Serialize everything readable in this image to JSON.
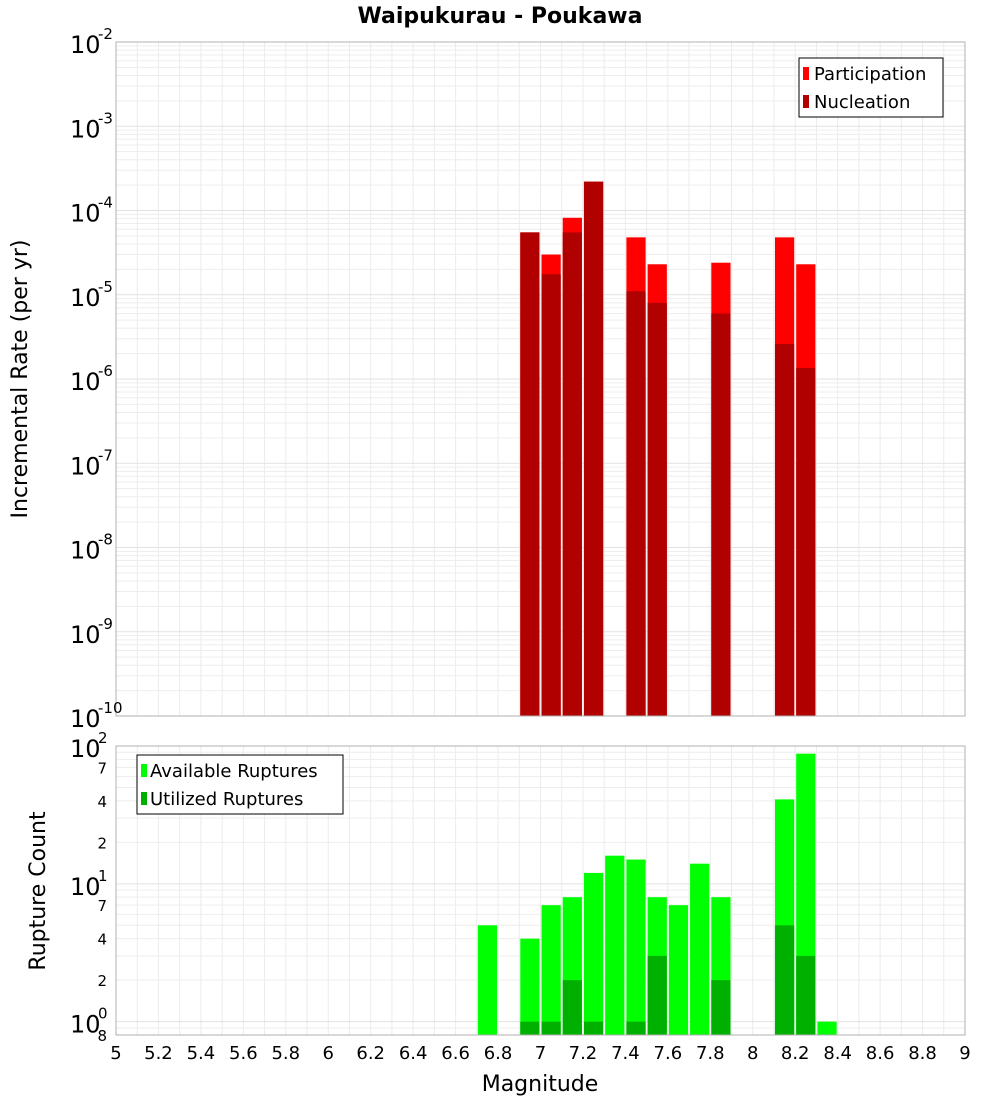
{
  "chart_data": [
    {
      "type": "bar",
      "title": "Waipukurau - Poukawa",
      "xlabel": "",
      "ylabel": "Incremental Rate (per yr)",
      "xlim": [
        5,
        9
      ],
      "ylim": [
        1e-10,
        0.01
      ],
      "yscale": "log",
      "grid": true,
      "legend_position": "top-right",
      "bar_width": 0.1,
      "x_ticks": [
        "5",
        "5.2",
        "5.4",
        "5.6",
        "5.8",
        "6",
        "6.2",
        "6.4",
        "6.6",
        "6.8",
        "7",
        "7.2",
        "7.4",
        "7.6",
        "7.8",
        "8",
        "8.2",
        "8.4",
        "8.6",
        "8.8",
        "9"
      ],
      "y_ticks": [
        {
          "base": "10",
          "exp": "-10"
        },
        {
          "base": "10",
          "exp": "-9"
        },
        {
          "base": "10",
          "exp": "-8"
        },
        {
          "base": "10",
          "exp": "-7"
        },
        {
          "base": "10",
          "exp": "-6"
        },
        {
          "base": "10",
          "exp": "-5"
        },
        {
          "base": "10",
          "exp": "-4"
        },
        {
          "base": "10",
          "exp": "-3"
        },
        {
          "base": "10",
          "exp": "-2"
        }
      ],
      "series": [
        {
          "name": "Participation",
          "color": "#ff0000",
          "x": [
            6.95,
            7.05,
            7.15,
            7.25,
            7.45,
            7.55,
            7.85,
            8.15,
            8.25
          ],
          "values": [
            5.5e-05,
            3e-05,
            8.2e-05,
            0.00022,
            4.8e-05,
            2.3e-05,
            2.4e-05,
            4.8e-05,
            2.3e-05
          ]
        },
        {
          "name": "Nucleation",
          "color": "#b00000",
          "x": [
            6.95,
            7.05,
            7.15,
            7.25,
            7.45,
            7.55,
            7.85,
            8.15,
            8.25
          ],
          "values": [
            5.5e-05,
            1.75e-05,
            5.5e-05,
            0.00022,
            1.1e-05,
            8e-06,
            6e-06,
            2.6e-06,
            1.35e-06
          ]
        }
      ]
    },
    {
      "type": "bar",
      "title": "",
      "xlabel": "Magnitude",
      "ylabel": "Rupture Count",
      "xlim": [
        5,
        9
      ],
      "ylim": [
        0.8,
        100
      ],
      "yscale": "log",
      "grid": true,
      "legend_position": "top-left",
      "bar_width": 0.1,
      "x_ticks": [
        "5",
        "5.2",
        "5.4",
        "5.6",
        "5.8",
        "6",
        "6.2",
        "6.4",
        "6.6",
        "6.8",
        "7",
        "7.2",
        "7.4",
        "7.6",
        "7.8",
        "8",
        "8.2",
        "8.4",
        "8.6",
        "8.8",
        "9"
      ],
      "y_ticks": [
        {
          "base": "10",
          "exp": "0"
        },
        {
          "base": "10",
          "exp": "1"
        },
        {
          "base": "10",
          "exp": "2"
        }
      ],
      "y_minor_labels": [
        {
          "value": 0.8,
          "label": "8"
        },
        {
          "value": 2,
          "label": "2"
        },
        {
          "value": 4,
          "label": "4"
        },
        {
          "value": 7,
          "label": "7"
        },
        {
          "value": 20,
          "label": "2"
        },
        {
          "value": 40,
          "label": "4"
        },
        {
          "value": 70,
          "label": "7"
        }
      ],
      "series": [
        {
          "name": "Available Ruptures",
          "color": "#00ff00",
          "x": [
            6.75,
            6.95,
            7.05,
            7.15,
            7.25,
            7.35,
            7.45,
            7.55,
            7.65,
            7.75,
            7.85,
            8.15,
            8.25,
            8.35
          ],
          "values": [
            5,
            4,
            7,
            8,
            12,
            16,
            15,
            8,
            7,
            14,
            8,
            41,
            88,
            1
          ]
        },
        {
          "name": "Utilized Ruptures",
          "color": "#00b000",
          "x": [
            6.95,
            7.05,
            7.15,
            7.25,
            7.45,
            7.55,
            7.85,
            8.15,
            8.25
          ],
          "values": [
            1,
            1,
            2,
            1,
            1,
            3,
            2,
            5,
            3
          ]
        }
      ]
    }
  ]
}
